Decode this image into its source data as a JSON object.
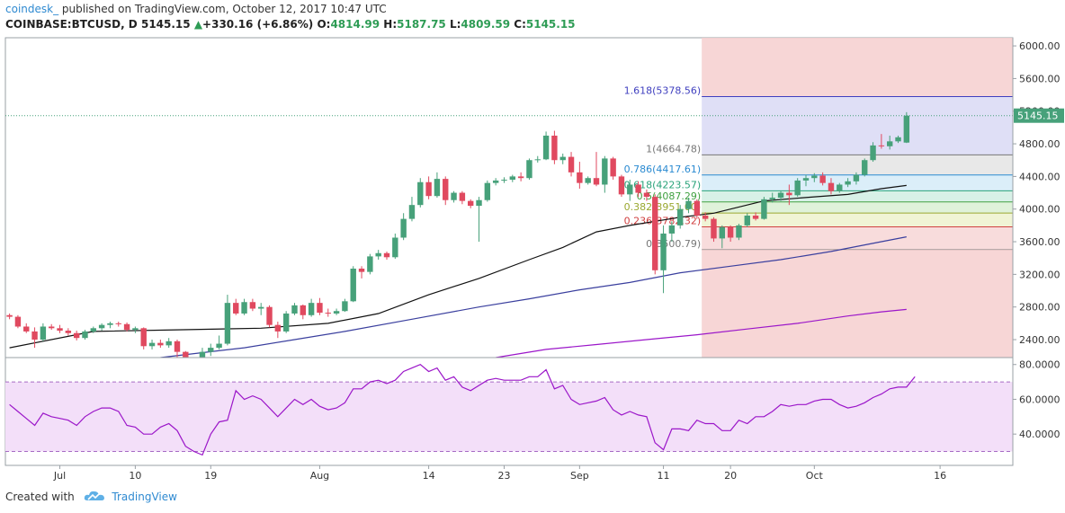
{
  "header": {
    "publisher": "coindesk_",
    "published_text": "published on TradingView.com, October 12, 2017 10:47 UTC",
    "symbol": "COINBASE:BTCUSD, D",
    "last": "5145.15",
    "change_arrow": "▲",
    "change": "+330.16 (+6.86%)",
    "o_label": "O:",
    "o_value": "4814.99",
    "h_label": "H:",
    "h_value": "5187.75",
    "l_label": "L:",
    "l_value": "4809.59",
    "c_label": "C:",
    "c_value": "5145.15"
  },
  "footer": {
    "created_with": "Created with",
    "brand": "TradingView"
  },
  "colors": {
    "up": "#47a17a",
    "down": "#e0495f",
    "ma_fast": "#111111",
    "ma_mid": "#3a3f9e",
    "ma_slow": "#9b16c9",
    "rsi": "#9b16c9",
    "fib_zone": "#f6cfcf"
  },
  "chart_data": [
    {
      "type": "candlestick",
      "symbol": "COINBASE:BTCUSD",
      "timeframe": "D",
      "ylim": [
        2180,
        6100
      ],
      "y_ticks": [
        "6000.00",
        "5600.00",
        "5200.00",
        "4800.00",
        "4400.00",
        "4000.00",
        "3600.00",
        "3200.00",
        "2800.00",
        "2400.00"
      ],
      "x_ticks": [
        {
          "label": "Jul",
          "index": 6
        },
        {
          "label": "10",
          "index": 15
        },
        {
          "label": "19",
          "index": 24
        },
        {
          "label": "Aug",
          "index": 37
        },
        {
          "label": "14",
          "index": 50
        },
        {
          "label": "23",
          "index": 59
        },
        {
          "label": "Sep",
          "index": 68
        },
        {
          "label": "11",
          "index": 78
        },
        {
          "label": "20",
          "index": 86
        },
        {
          "label": "Oct",
          "index": 96
        },
        {
          "label": "16",
          "index": 111
        }
      ],
      "last_price_label": "5145.15",
      "candles": [
        {
          "o": 2700,
          "h": 2720,
          "l": 2650,
          "c": 2680
        },
        {
          "o": 2680,
          "h": 2700,
          "l": 2540,
          "c": 2560
        },
        {
          "o": 2560,
          "h": 2600,
          "l": 2480,
          "c": 2500
        },
        {
          "o": 2500,
          "h": 2550,
          "l": 2300,
          "c": 2400
        },
        {
          "o": 2400,
          "h": 2600,
          "l": 2380,
          "c": 2560
        },
        {
          "o": 2560,
          "h": 2590,
          "l": 2520,
          "c": 2540
        },
        {
          "o": 2540,
          "h": 2580,
          "l": 2480,
          "c": 2510
        },
        {
          "o": 2510,
          "h": 2540,
          "l": 2450,
          "c": 2480
        },
        {
          "o": 2480,
          "h": 2510,
          "l": 2390,
          "c": 2420
        },
        {
          "o": 2420,
          "h": 2520,
          "l": 2400,
          "c": 2500
        },
        {
          "o": 2500,
          "h": 2560,
          "l": 2480,
          "c": 2540
        },
        {
          "o": 2540,
          "h": 2600,
          "l": 2510,
          "c": 2580
        },
        {
          "o": 2580,
          "h": 2620,
          "l": 2540,
          "c": 2600
        },
        {
          "o": 2600,
          "h": 2620,
          "l": 2560,
          "c": 2590
        },
        {
          "o": 2590,
          "h": 2610,
          "l": 2500,
          "c": 2520
        },
        {
          "o": 2520,
          "h": 2560,
          "l": 2480,
          "c": 2540
        },
        {
          "o": 2540,
          "h": 2550,
          "l": 2280,
          "c": 2320
        },
        {
          "o": 2320,
          "h": 2400,
          "l": 2280,
          "c": 2360
        },
        {
          "o": 2360,
          "h": 2400,
          "l": 2300,
          "c": 2330
        },
        {
          "o": 2330,
          "h": 2420,
          "l": 2300,
          "c": 2380
        },
        {
          "o": 2380,
          "h": 2400,
          "l": 2180,
          "c": 2250
        },
        {
          "o": 2250,
          "h": 2260,
          "l": 1950,
          "c": 2020
        },
        {
          "o": 2020,
          "h": 2150,
          "l": 1900,
          "c": 2100
        },
        {
          "o": 2100,
          "h": 2300,
          "l": 2050,
          "c": 2250
        },
        {
          "o": 2250,
          "h": 2350,
          "l": 2200,
          "c": 2300
        },
        {
          "o": 2300,
          "h": 2450,
          "l": 2280,
          "c": 2350
        },
        {
          "o": 2350,
          "h": 2950,
          "l": 2330,
          "c": 2850
        },
        {
          "o": 2850,
          "h": 2900,
          "l": 2700,
          "c": 2720
        },
        {
          "o": 2720,
          "h": 2900,
          "l": 2700,
          "c": 2860
        },
        {
          "o": 2860,
          "h": 2900,
          "l": 2750,
          "c": 2780
        },
        {
          "o": 2780,
          "h": 2850,
          "l": 2700,
          "c": 2800
        },
        {
          "o": 2800,
          "h": 2820,
          "l": 2550,
          "c": 2580
        },
        {
          "o": 2580,
          "h": 2620,
          "l": 2420,
          "c": 2500
        },
        {
          "o": 2500,
          "h": 2750,
          "l": 2480,
          "c": 2720
        },
        {
          "o": 2720,
          "h": 2850,
          "l": 2700,
          "c": 2820
        },
        {
          "o": 2820,
          "h": 2830,
          "l": 2650,
          "c": 2700
        },
        {
          "o": 2700,
          "h": 2900,
          "l": 2680,
          "c": 2850
        },
        {
          "o": 2850,
          "h": 2910,
          "l": 2700,
          "c": 2730
        },
        {
          "o": 2730,
          "h": 2780,
          "l": 2680,
          "c": 2720
        },
        {
          "o": 2720,
          "h": 2780,
          "l": 2700,
          "c": 2750
        },
        {
          "o": 2750,
          "h": 2900,
          "l": 2740,
          "c": 2870
        },
        {
          "o": 2870,
          "h": 3300,
          "l": 2860,
          "c": 3270
        },
        {
          "o": 3270,
          "h": 3300,
          "l": 3150,
          "c": 3230
        },
        {
          "o": 3230,
          "h": 3450,
          "l": 3200,
          "c": 3420
        },
        {
          "o": 3420,
          "h": 3500,
          "l": 3380,
          "c": 3460
        },
        {
          "o": 3460,
          "h": 3480,
          "l": 3380,
          "c": 3410
        },
        {
          "o": 3410,
          "h": 3700,
          "l": 3390,
          "c": 3650
        },
        {
          "o": 3650,
          "h": 3950,
          "l": 3620,
          "c": 3880
        },
        {
          "o": 3880,
          "h": 4150,
          "l": 3850,
          "c": 4050
        },
        {
          "o": 4050,
          "h": 4380,
          "l": 4020,
          "c": 4330
        },
        {
          "o": 4330,
          "h": 4400,
          "l": 4120,
          "c": 4160
        },
        {
          "o": 4160,
          "h": 4450,
          "l": 4140,
          "c": 4370
        },
        {
          "o": 4370,
          "h": 4400,
          "l": 4050,
          "c": 4110
        },
        {
          "o": 4110,
          "h": 4220,
          "l": 4080,
          "c": 4200
        },
        {
          "o": 4200,
          "h": 4220,
          "l": 4060,
          "c": 4100
        },
        {
          "o": 4100,
          "h": 4120,
          "l": 4010,
          "c": 4040
        },
        {
          "o": 4040,
          "h": 4150,
          "l": 3600,
          "c": 4110
        },
        {
          "o": 4110,
          "h": 4350,
          "l": 4090,
          "c": 4320
        },
        {
          "o": 4320,
          "h": 4380,
          "l": 4290,
          "c": 4350
        },
        {
          "o": 4350,
          "h": 4390,
          "l": 4320,
          "c": 4360
        },
        {
          "o": 4360,
          "h": 4420,
          "l": 4330,
          "c": 4400
        },
        {
          "o": 4400,
          "h": 4450,
          "l": 4340,
          "c": 4380
        },
        {
          "o": 4380,
          "h": 4620,
          "l": 4360,
          "c": 4600
        },
        {
          "o": 4600,
          "h": 4650,
          "l": 4570,
          "c": 4610
        },
        {
          "o": 4610,
          "h": 4950,
          "l": 4600,
          "c": 4900
        },
        {
          "o": 4900,
          "h": 4960,
          "l": 4550,
          "c": 4600
        },
        {
          "o": 4600,
          "h": 4680,
          "l": 4550,
          "c": 4640
        },
        {
          "o": 4640,
          "h": 4700,
          "l": 4400,
          "c": 4450
        },
        {
          "o": 4450,
          "h": 4580,
          "l": 4250,
          "c": 4320
        },
        {
          "o": 4320,
          "h": 4400,
          "l": 4300,
          "c": 4380
        },
        {
          "o": 4380,
          "h": 4700,
          "l": 4280,
          "c": 4300
        },
        {
          "o": 4300,
          "h": 4650,
          "l": 4200,
          "c": 4620
        },
        {
          "o": 4620,
          "h": 4640,
          "l": 4360,
          "c": 4400
        },
        {
          "o": 4400,
          "h": 4420,
          "l": 4150,
          "c": 4180
        },
        {
          "o": 4180,
          "h": 4360,
          "l": 4100,
          "c": 4300
        },
        {
          "o": 4300,
          "h": 4340,
          "l": 4150,
          "c": 4200
        },
        {
          "o": 4200,
          "h": 4240,
          "l": 4100,
          "c": 4150
        },
        {
          "o": 4150,
          "h": 4180,
          "l": 3200,
          "c": 3250
        },
        {
          "o": 3250,
          "h": 3800,
          "l": 2970,
          "c": 3700
        },
        {
          "o": 3700,
          "h": 3850,
          "l": 3600,
          "c": 3800
        },
        {
          "o": 3800,
          "h": 4050,
          "l": 3760,
          "c": 4000
        },
        {
          "o": 4000,
          "h": 4140,
          "l": 3950,
          "c": 4100
        },
        {
          "o": 4100,
          "h": 4120,
          "l": 3880,
          "c": 3920
        },
        {
          "o": 3920,
          "h": 3960,
          "l": 3850,
          "c": 3880
        },
        {
          "o": 3880,
          "h": 3900,
          "l": 3600,
          "c": 3640
        },
        {
          "o": 3640,
          "h": 3800,
          "l": 3520,
          "c": 3780
        },
        {
          "o": 3780,
          "h": 3800,
          "l": 3600,
          "c": 3650
        },
        {
          "o": 3650,
          "h": 3820,
          "l": 3620,
          "c": 3800
        },
        {
          "o": 3800,
          "h": 3950,
          "l": 3780,
          "c": 3920
        },
        {
          "o": 3920,
          "h": 3960,
          "l": 3860,
          "c": 3880
        },
        {
          "o": 3880,
          "h": 4150,
          "l": 3870,
          "c": 4120
        },
        {
          "o": 4120,
          "h": 4200,
          "l": 4080,
          "c": 4140
        },
        {
          "o": 4140,
          "h": 4220,
          "l": 4100,
          "c": 4200
        },
        {
          "o": 4200,
          "h": 4300,
          "l": 4050,
          "c": 4170
        },
        {
          "o": 4170,
          "h": 4380,
          "l": 4150,
          "c": 4350
        },
        {
          "o": 4350,
          "h": 4420,
          "l": 4280,
          "c": 4380
        },
        {
          "o": 4380,
          "h": 4440,
          "l": 4330,
          "c": 4410
        },
        {
          "o": 4410,
          "h": 4450,
          "l": 4290,
          "c": 4320
        },
        {
          "o": 4320,
          "h": 4380,
          "l": 4180,
          "c": 4220
        },
        {
          "o": 4220,
          "h": 4320,
          "l": 4200,
          "c": 4300
        },
        {
          "o": 4300,
          "h": 4380,
          "l": 4270,
          "c": 4340
        },
        {
          "o": 4340,
          "h": 4450,
          "l": 4300,
          "c": 4420
        },
        {
          "o": 4420,
          "h": 4620,
          "l": 4400,
          "c": 4600
        },
        {
          "o": 4600,
          "h": 4820,
          "l": 4580,
          "c": 4780
        },
        {
          "o": 4780,
          "h": 4920,
          "l": 4740,
          "c": 4770
        },
        {
          "o": 4770,
          "h": 4900,
          "l": 4730,
          "c": 4830
        },
        {
          "o": 4830,
          "h": 4900,
          "l": 4810,
          "c": 4880
        },
        {
          "o": 4814.99,
          "h": 5187.75,
          "l": 4809.59,
          "c": 5145.15
        }
      ],
      "moving_averages": [
        {
          "color": "#111111",
          "points": [
            [
              0,
              2300
            ],
            [
              10,
              2500
            ],
            [
              20,
              2520
            ],
            [
              30,
              2540
            ],
            [
              38,
              2600
            ],
            [
              44,
              2720
            ],
            [
              50,
              2950
            ],
            [
              56,
              3150
            ],
            [
              62,
              3380
            ],
            [
              66,
              3530
            ],
            [
              70,
              3720
            ],
            [
              74,
              3800
            ],
            [
              80,
              3900
            ],
            [
              84,
              3950
            ],
            [
              90,
              4100
            ],
            [
              96,
              4150
            ],
            [
              100,
              4180
            ],
            [
              104,
              4250
            ],
            [
              107,
              4290
            ]
          ]
        },
        {
          "color": "#3a3f9e",
          "points": [
            [
              18,
              2180
            ],
            [
              28,
              2300
            ],
            [
              34,
              2400
            ],
            [
              40,
              2500
            ],
            [
              48,
              2650
            ],
            [
              56,
              2800
            ],
            [
              62,
              2900
            ],
            [
              68,
              3010
            ],
            [
              74,
              3100
            ],
            [
              80,
              3220
            ],
            [
              86,
              3300
            ],
            [
              92,
              3380
            ],
            [
              98,
              3480
            ],
            [
              104,
              3600
            ],
            [
              107,
              3660
            ]
          ]
        },
        {
          "color": "#9b16c9",
          "points": [
            [
              58,
              2180
            ],
            [
              64,
              2280
            ],
            [
              70,
              2340
            ],
            [
              76,
              2400
            ],
            [
              82,
              2460
            ],
            [
              88,
              2530
            ],
            [
              94,
              2600
            ],
            [
              100,
              2690
            ],
            [
              104,
              2740
            ],
            [
              107,
              2770
            ]
          ]
        }
      ],
      "fibonacci": {
        "from_index": 83,
        "levels": [
          {
            "label": "1.618(5378.56)",
            "value": 5378.56,
            "color": "#3f3fbf",
            "fill": "#dcdcf5"
          },
          {
            "label": "1(4664.78)",
            "value": 4664.78,
            "color": "#777777",
            "fill": "#e6e6e6"
          },
          {
            "label": "0.786(4417.61)",
            "value": 4417.61,
            "color": "#2a8ad1",
            "fill": "#d7ecf8"
          },
          {
            "label": "0.618(4223.57)",
            "value": 4223.57,
            "color": "#2aa37a",
            "fill": "#d4f0e4"
          },
          {
            "label": "0.5(4087.29)",
            "value": 4087.29,
            "color": "#40a040",
            "fill": "#dbf1d6"
          },
          {
            "label": "0.382(3951.00)",
            "value": 3951.0,
            "color": "#9aa830",
            "fill": "#eef3d0"
          },
          {
            "label": "0.236(3782.32)",
            "value": 3782.32,
            "color": "#d04040",
            "fill": "#f7d8d8"
          },
          {
            "label": "0(3500.79)",
            "value": 3500.79,
            "color": "#777777",
            "fill": "#f2dada"
          }
        ]
      }
    },
    {
      "type": "line",
      "indicator": "RSI",
      "ylim": [
        22,
        84
      ],
      "y_ticks": [
        "80.0000",
        "60.0000",
        "40.0000"
      ],
      "bands": [
        30,
        70
      ],
      "values": [
        57,
        53,
        49,
        45,
        52,
        50,
        49,
        48,
        45,
        50,
        53,
        55,
        55,
        53,
        45,
        44,
        40,
        40,
        44,
        46,
        42,
        33,
        30,
        28,
        40,
        47,
        48,
        65,
        60,
        62,
        60,
        55,
        50,
        55,
        60,
        57,
        60,
        56,
        54,
        55,
        58,
        66,
        66,
        70,
        71,
        69,
        71,
        76,
        78,
        80,
        76,
        78,
        71,
        73,
        67,
        65,
        68,
        71,
        72,
        71,
        71,
        71,
        73,
        73,
        77,
        66,
        68,
        60,
        57,
        58,
        59,
        61,
        54,
        51,
        53,
        51,
        50,
        35,
        31,
        43,
        43,
        42,
        48,
        46,
        46,
        42,
        42,
        48,
        46,
        50,
        50,
        53,
        57,
        56,
        57,
        57,
        59,
        60,
        60,
        57,
        55,
        56,
        58,
        61,
        63,
        66,
        67,
        67,
        73
      ]
    }
  ]
}
